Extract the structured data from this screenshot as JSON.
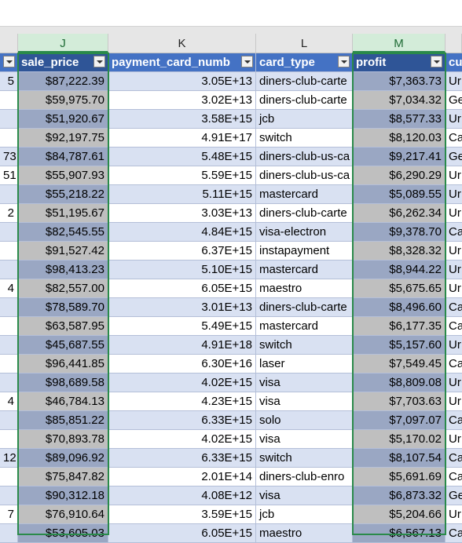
{
  "columns": [
    "J",
    "K",
    "L",
    "M"
  ],
  "headers": {
    "col_a": "",
    "sale_price": "sale_price",
    "payment_card_number": "payment_card_numb",
    "card_type": "card_type",
    "profit": "profit",
    "col_n": "cu"
  },
  "rows": [
    {
      "a": "5",
      "sale_price": "$87,222.39",
      "card": "3.05E+13",
      "type": "diners-club-carte",
      "profit": "$7,363.73",
      "n": "Ur"
    },
    {
      "a": "",
      "sale_price": "$59,975.70",
      "card": "3.02E+13",
      "type": "diners-club-carte",
      "profit": "$7,034.32",
      "n": "Ge"
    },
    {
      "a": "",
      "sale_price": "$51,920.67",
      "card": "3.58E+15",
      "type": "jcb",
      "profit": "$8,577.33",
      "n": "Ur"
    },
    {
      "a": "",
      "sale_price": "$92,197.75",
      "card": "4.91E+17",
      "type": "switch",
      "profit": "$8,120.03",
      "n": "Ca"
    },
    {
      "a": "73",
      "sale_price": "$84,787.61",
      "card": "5.48E+15",
      "type": "diners-club-us-ca",
      "profit": "$9,217.41",
      "n": "Ge"
    },
    {
      "a": "51",
      "sale_price": "$55,907.93",
      "card": "5.59E+15",
      "type": "diners-club-us-ca",
      "profit": "$6,290.29",
      "n": "Ur"
    },
    {
      "a": "",
      "sale_price": "$55,218.22",
      "card": "5.11E+15",
      "type": "mastercard",
      "profit": "$5,089.55",
      "n": "Ur"
    },
    {
      "a": "2",
      "sale_price": "$51,195.67",
      "card": "3.03E+13",
      "type": "diners-club-carte",
      "profit": "$6,262.34",
      "n": "Ur"
    },
    {
      "a": "",
      "sale_price": "$82,545.55",
      "card": "4.84E+15",
      "type": "visa-electron",
      "profit": "$9,378.70",
      "n": "Ca"
    },
    {
      "a": "",
      "sale_price": "$91,527.42",
      "card": "6.37E+15",
      "type": "instapayment",
      "profit": "$8,328.32",
      "n": "Ur"
    },
    {
      "a": "",
      "sale_price": "$98,413.23",
      "card": "5.10E+15",
      "type": "mastercard",
      "profit": "$8,944.22",
      "n": "Ur"
    },
    {
      "a": "4",
      "sale_price": "$82,557.00",
      "card": "6.05E+15",
      "type": "maestro",
      "profit": "$5,675.65",
      "n": "Ur"
    },
    {
      "a": "",
      "sale_price": "$78,589.70",
      "card": "3.01E+13",
      "type": "diners-club-carte",
      "profit": "$8,496.60",
      "n": "Ca"
    },
    {
      "a": "",
      "sale_price": "$63,587.95",
      "card": "5.49E+15",
      "type": "mastercard",
      "profit": "$6,177.35",
      "n": "Ca"
    },
    {
      "a": "",
      "sale_price": "$45,687.55",
      "card": "4.91E+18",
      "type": "switch",
      "profit": "$5,157.60",
      "n": "Ur"
    },
    {
      "a": "",
      "sale_price": "$96,441.85",
      "card": "6.30E+16",
      "type": "laser",
      "profit": "$7,549.45",
      "n": "Ca"
    },
    {
      "a": "",
      "sale_price": "$98,689.58",
      "card": "4.02E+15",
      "type": "visa",
      "profit": "$8,809.08",
      "n": "Ur"
    },
    {
      "a": "4",
      "sale_price": "$46,784.13",
      "card": "4.23E+15",
      "type": "visa",
      "profit": "$7,703.63",
      "n": "Ur"
    },
    {
      "a": "",
      "sale_price": "$85,851.22",
      "card": "6.33E+15",
      "type": "solo",
      "profit": "$7,097.07",
      "n": "Ca"
    },
    {
      "a": "",
      "sale_price": "$70,893.78",
      "card": "4.02E+15",
      "type": "visa",
      "profit": "$5,170.02",
      "n": "Ur"
    },
    {
      "a": "12",
      "sale_price": "$89,096.92",
      "card": "6.33E+15",
      "type": "switch",
      "profit": "$8,107.54",
      "n": "Ca"
    },
    {
      "a": "",
      "sale_price": "$75,847.82",
      "card": "2.01E+14",
      "type": "diners-club-enro",
      "profit": "$5,691.69",
      "n": "Ca"
    },
    {
      "a": "",
      "sale_price": "$90,312.18",
      "card": "4.08E+12",
      "type": "visa",
      "profit": "$6,873.32",
      "n": "Ge"
    },
    {
      "a": "7",
      "sale_price": "$76,910.64",
      "card": "3.59E+15",
      "type": "jcb",
      "profit": "$5,204.66",
      "n": "Ur"
    },
    {
      "a": "",
      "sale_price": "$53,605.03",
      "card": "6.05E+15",
      "type": "maestro",
      "profit": "$6,567.13",
      "n": "Ca"
    }
  ]
}
